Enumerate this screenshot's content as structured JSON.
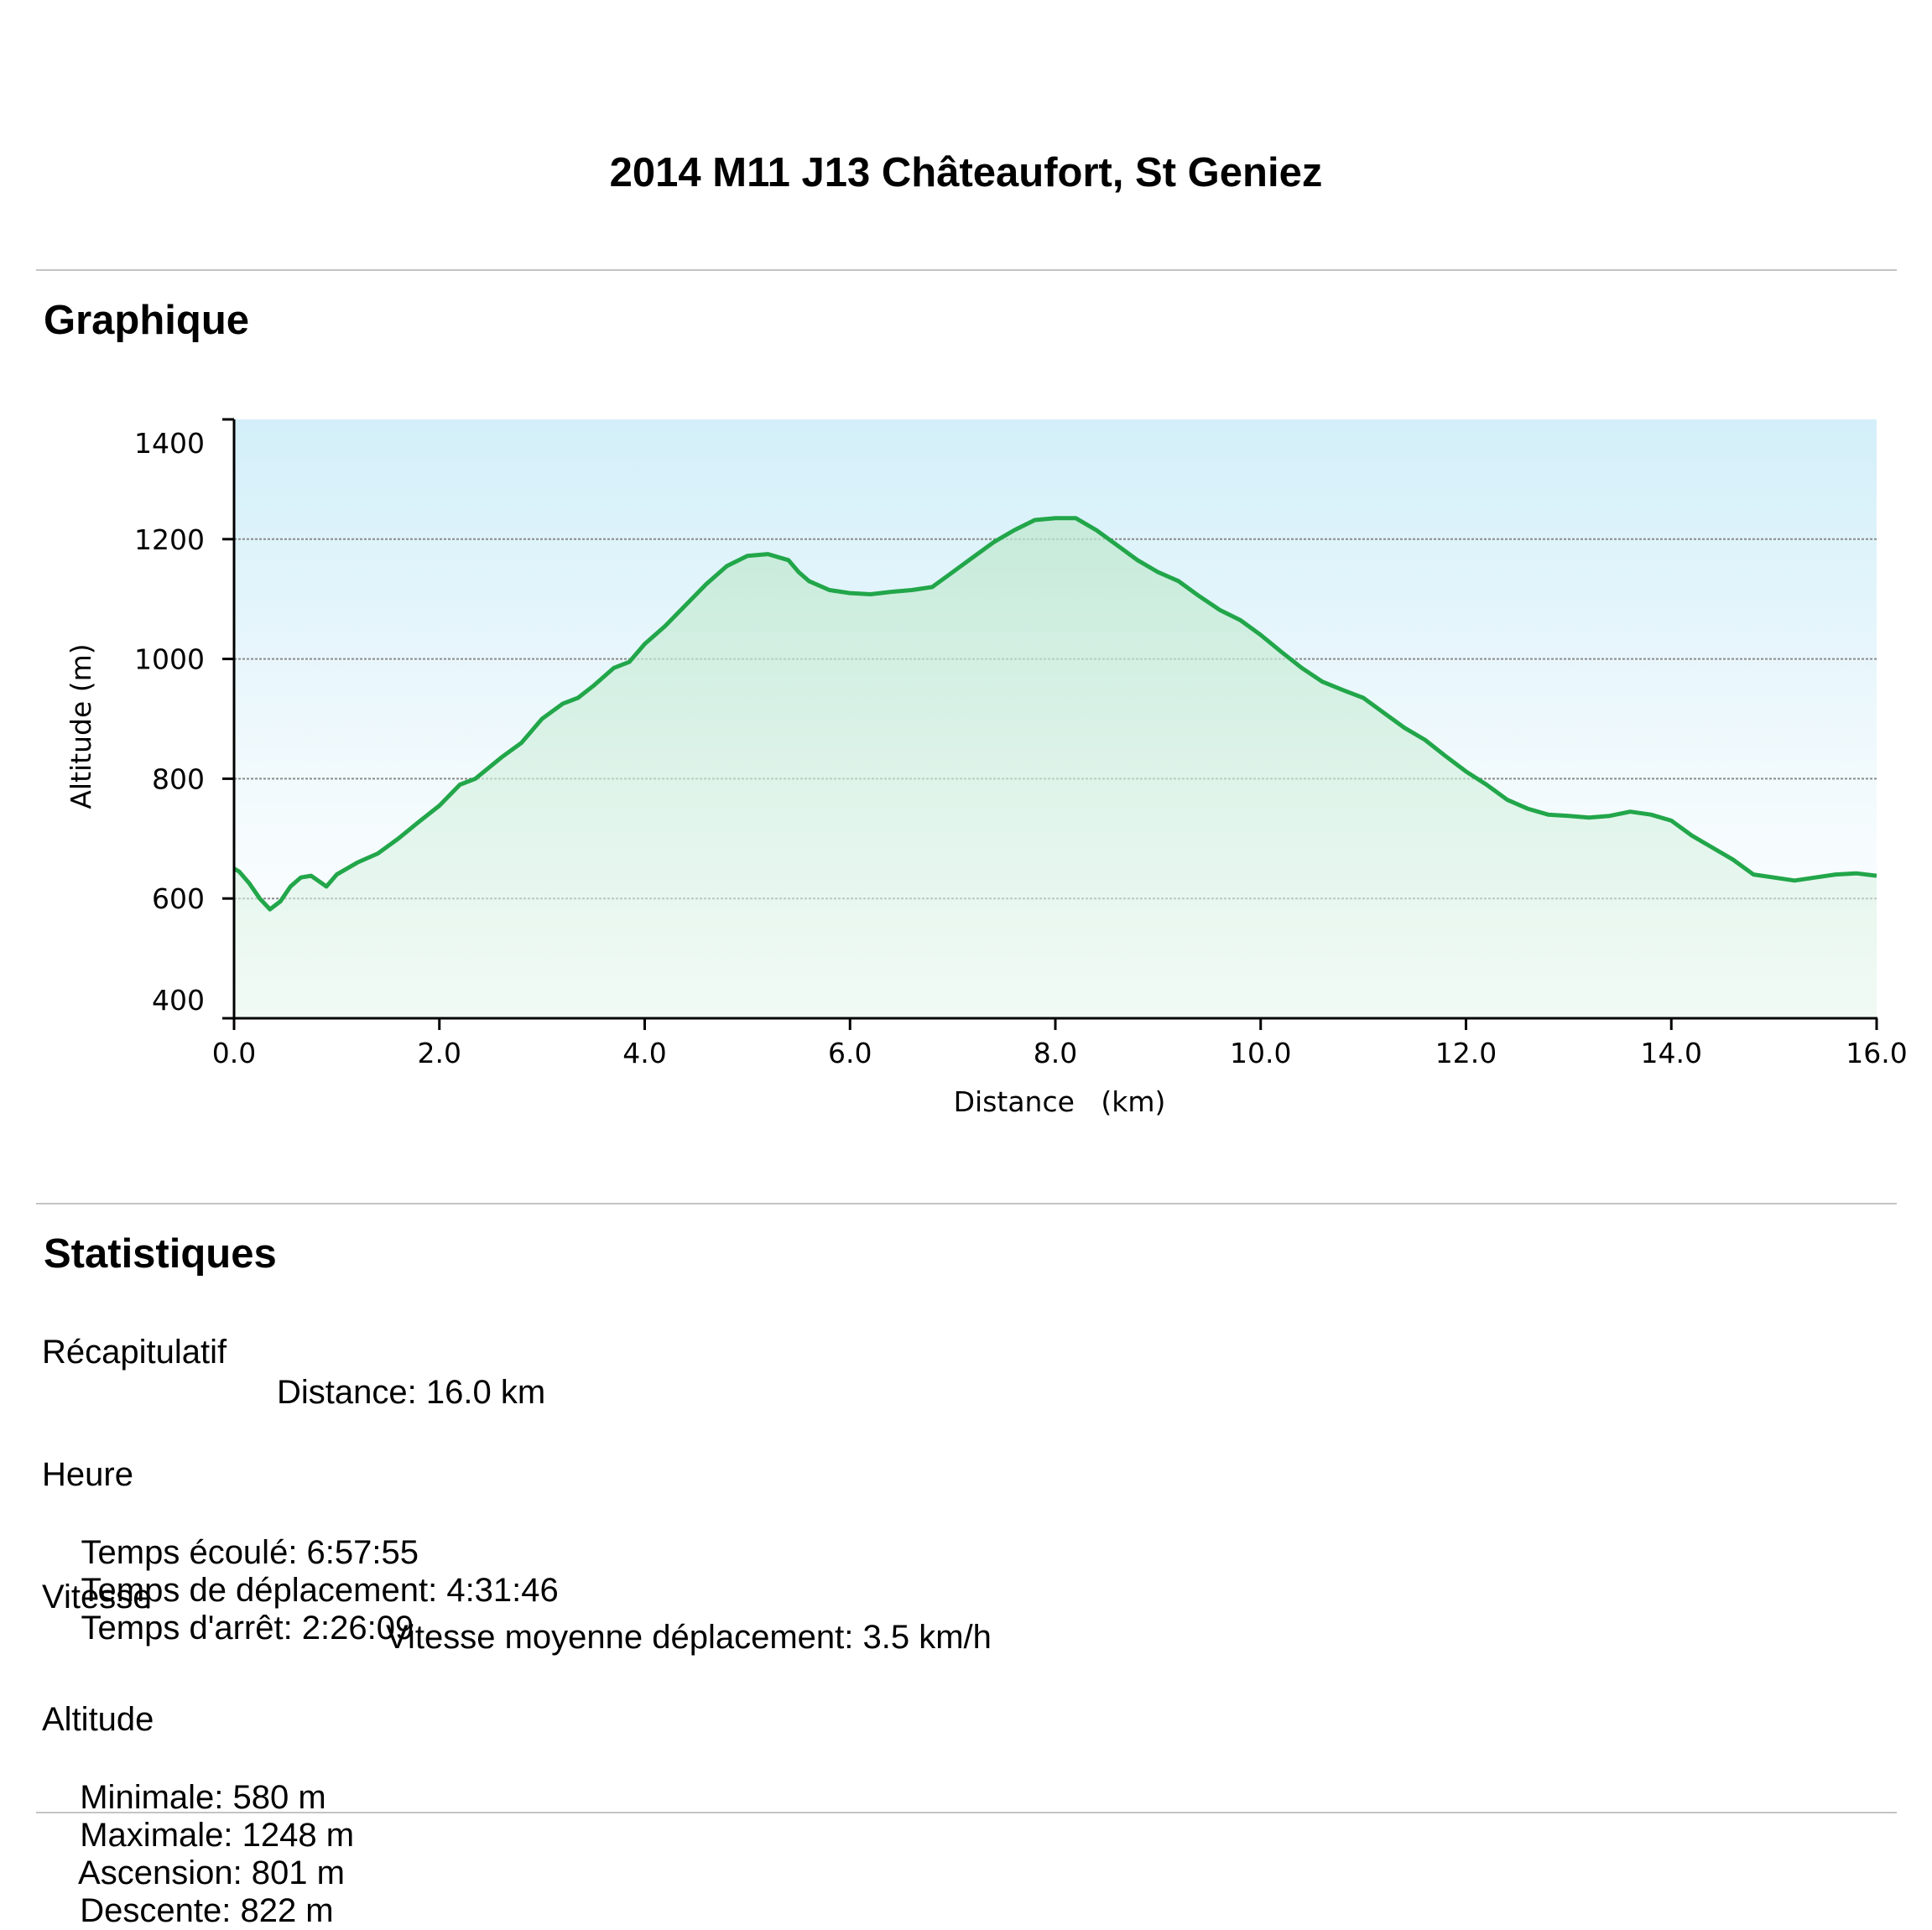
{
  "page_title": "2014 M11 J13 Châteaufort, St Geniez",
  "sections": {
    "chart_heading": "Graphique",
    "stats_heading": "Statistiques"
  },
  "chart_data": {
    "type": "area",
    "title": "",
    "xlabel": "Distance   (km)",
    "ylabel": "Altitude (m)",
    "xlim": [
      0,
      16
    ],
    "ylim": [
      400,
      1400
    ],
    "x_ticks": [
      "0.0",
      "2.0",
      "4.0",
      "6.0",
      "8.0",
      "10.0",
      "12.0",
      "14.0",
      "16.0"
    ],
    "y_ticks": [
      "400",
      "600",
      "800",
      "1000",
      "1200",
      "1400"
    ],
    "grid": "horizontal dashed at 600, 800, 1000, 1200",
    "line_color": "#22a64a",
    "series": [
      {
        "x": [
          0.0,
          0.05,
          0.15,
          0.25,
          0.35,
          0.45,
          0.55,
          0.65,
          0.75,
          0.9,
          1.0,
          1.2,
          1.4,
          1.6,
          1.8,
          2.0,
          2.2,
          2.35,
          2.6,
          2.8,
          3.0,
          3.2,
          3.35,
          3.5,
          3.7,
          3.85,
          4.0,
          4.2,
          4.4,
          4.6,
          4.8,
          5.0,
          5.2,
          5.4,
          5.5,
          5.6,
          5.8,
          6.0,
          6.2,
          6.4,
          6.6,
          6.8,
          7.0,
          7.2,
          7.4,
          7.6,
          7.8,
          8.0,
          8.2,
          8.4,
          8.6,
          8.8,
          9.0,
          9.2,
          9.4,
          9.6,
          9.8,
          10.0,
          10.2,
          10.4,
          10.6,
          10.8,
          11.0,
          11.2,
          11.4,
          11.6,
          11.8,
          12.0,
          12.2,
          12.4,
          12.6,
          12.8,
          13.0,
          13.2,
          13.4,
          13.6,
          13.8,
          14.0,
          14.2,
          14.4,
          14.6,
          14.8,
          15.0,
          15.2,
          15.4,
          15.6,
          15.8,
          16.0
        ],
        "y": [
          650,
          645,
          625,
          600,
          582,
          595,
          620,
          635,
          638,
          620,
          640,
          660,
          675,
          700,
          728,
          755,
          790,
          800,
          835,
          860,
          900,
          925,
          935,
          955,
          985,
          995,
          1025,
          1055,
          1090,
          1125,
          1155,
          1172,
          1175,
          1165,
          1145,
          1130,
          1115,
          1110,
          1108,
          1112,
          1115,
          1120,
          1145,
          1170,
          1195,
          1215,
          1232,
          1235,
          1235,
          1215,
          1190,
          1165,
          1145,
          1130,
          1105,
          1082,
          1065,
          1040,
          1012,
          985,
          962,
          948,
          935,
          910,
          885,
          865,
          838,
          812,
          790,
          765,
          750,
          740,
          738,
          735,
          738,
          745,
          740,
          730,
          705,
          685,
          665,
          640,
          635,
          630,
          635,
          640,
          642,
          638
        ]
      }
    ]
  },
  "stats": {
    "recap": {
      "heading": "Récapitulatif",
      "line": "Distance: 16.0 km"
    },
    "time": {
      "heading": "Heure",
      "items": [
        "Temps écoulé: 6:57:55",
        "Temps de déplacement: 4:31:46",
        "Temps d'arrêt: 2:26:09"
      ]
    },
    "speed": {
      "heading": "Vitesse",
      "line": "Vitesse moyenne déplacement: 3.5 km/h"
    },
    "altitude": {
      "heading": "Altitude",
      "items": [
        "Minimale: 580 m",
        "Maximale: 1248 m",
        "Ascension: 801 m",
        "Descente: 822 m"
      ]
    }
  }
}
